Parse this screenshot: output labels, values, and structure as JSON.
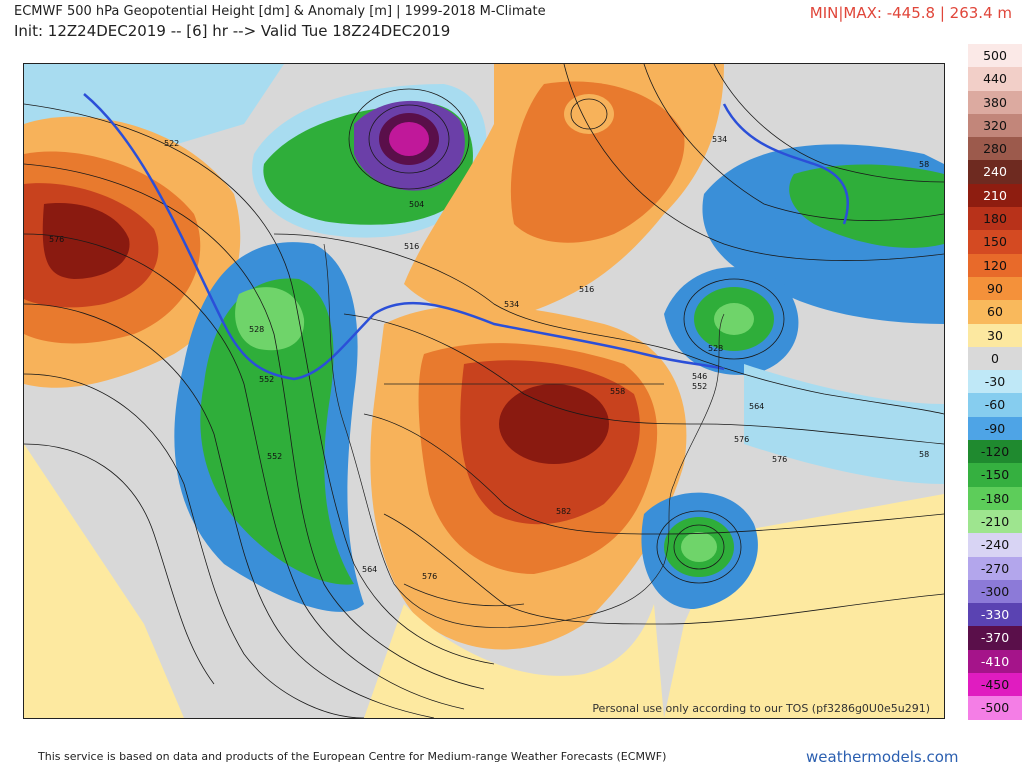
{
  "header": {
    "title_line1": "ECMWF 500 hPa Geopotential Height [dm] & Anomaly [m] | 1999-2018 M-Climate",
    "title_line2": "Init: 12Z24DEC2019 -- [6] hr --> Valid Tue 18Z24DEC2019",
    "minmax": "MIN|MAX: -445.8 | 263.4 m"
  },
  "map": {
    "watermark": "Personal use only according to our TOS (pf3286g0U0e5u291)",
    "contour_labels": [
      "522",
      "576",
      "504",
      "516",
      "528",
      "534",
      "552",
      "564",
      "570",
      "576",
      "58",
      "534",
      "528",
      "546",
      "552",
      "558",
      "564",
      "570",
      "576",
      "582",
      "516",
      "528",
      "58"
    ],
    "colors": {
      "deep_red": "#8a1a10",
      "red": "#c8421e",
      "orange": "#e87a2e",
      "light_orange": "#f7b25a",
      "yellow": "#fde9a0",
      "gray": "#d8d8d8",
      "light_blue": "#a8dcf0",
      "blue": "#3a8fd8",
      "dark_blue": "#1f5fb8",
      "green": "#2fae3a",
      "light_green": "#6fd46a",
      "purple": "#6b3fa8",
      "magenta": "#c0189a"
    }
  },
  "legend": {
    "items": [
      {
        "label": "500",
        "color": "#fbe9e7"
      },
      {
        "label": "440",
        "color": "#f2cfc8"
      },
      {
        "label": "380",
        "color": "#dcaaa0"
      },
      {
        "label": "320",
        "color": "#c2867a"
      },
      {
        "label": "280",
        "color": "#9c5a4c"
      },
      {
        "label": "240",
        "color": "#6e2a20"
      },
      {
        "label": "210",
        "color": "#8e1d10"
      },
      {
        "label": "180",
        "color": "#b8321a"
      },
      {
        "label": "150",
        "color": "#d44a22"
      },
      {
        "label": "120",
        "color": "#e86a2a"
      },
      {
        "label": "90",
        "color": "#f4913a"
      },
      {
        "label": "60",
        "color": "#f9b95c"
      },
      {
        "label": "30",
        "color": "#fce8a0"
      },
      {
        "label": "0",
        "color": "#d9d9d9"
      },
      {
        "label": "-30",
        "color": "#bfe8f7"
      },
      {
        "label": "-60",
        "color": "#86cdef"
      },
      {
        "label": "-90",
        "color": "#4ea4e6"
      },
      {
        "label": "-120",
        "color": "#1f8a2f"
      },
      {
        "label": "-150",
        "color": "#35b040"
      },
      {
        "label": "-180",
        "color": "#5dcd5a"
      },
      {
        "label": "-210",
        "color": "#9ee58f"
      },
      {
        "label": "-240",
        "color": "#d8d4f4"
      },
      {
        "label": "-270",
        "color": "#b3a6ec"
      },
      {
        "label": "-300",
        "color": "#8c7ad8"
      },
      {
        "label": "-330",
        "color": "#5a43b2"
      },
      {
        "label": "-370",
        "color": "#5a0f4a"
      },
      {
        "label": "-410",
        "color": "#a5148a"
      },
      {
        "label": "-450",
        "color": "#e01cc0"
      },
      {
        "label": "-500",
        "color": "#f47ee6"
      }
    ]
  },
  "footer": {
    "credit": "This service is based on data and products of the European Centre for Medium-range Weather Forecasts (ECMWF)",
    "site": "weathermodels.com"
  }
}
